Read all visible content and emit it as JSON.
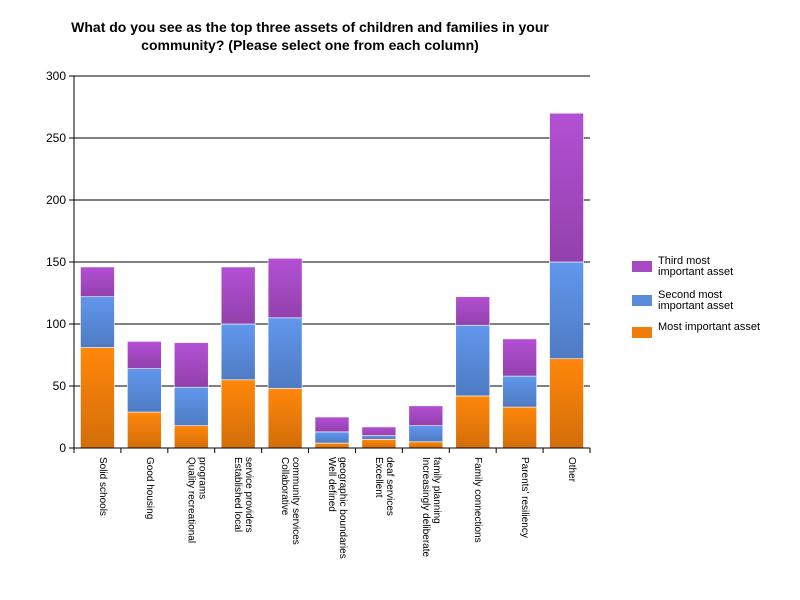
{
  "chart_data": {
    "type": "bar",
    "stacked": true,
    "title": "What do you see as the top three assets of children and families in your community? (Please select one from each column)",
    "categories": [
      "Solid schools",
      "Good housing",
      "Quality recreational programs",
      "Established local service providers",
      "Collaborative community services",
      "Well defined geographic boundaries",
      "Excellent deaf services",
      "Increasingly deliberate family planning",
      "Family connections",
      "Parents' resiliency",
      "Other"
    ],
    "category_lines": [
      [
        "Solid schools"
      ],
      [
        "Good housing"
      ],
      [
        "Quality recreational",
        "programs"
      ],
      [
        "Established local",
        "service providers"
      ],
      [
        "Collaborative",
        "community services"
      ],
      [
        "Well defined",
        "geographic boundaries"
      ],
      [
        "Excellent",
        "deaf services"
      ],
      [
        "Increasingly deliberate",
        "family planning"
      ],
      [
        "Family connections"
      ],
      [
        "Parents' resiliency"
      ],
      [
        "Other"
      ]
    ],
    "series": [
      {
        "name": "Most important asset",
        "color": "#f07d0a",
        "values": [
          81,
          29,
          18,
          55,
          48,
          4,
          7,
          5,
          42,
          33,
          72
        ]
      },
      {
        "name": "Second most important asset",
        "color": "#5a8cdc",
        "values": [
          41,
          35,
          31,
          45,
          57,
          9,
          3,
          13,
          57,
          25,
          78
        ]
      },
      {
        "name": "Third most important asset",
        "color": "#a64ac4",
        "values": [
          24,
          22,
          36,
          46,
          48,
          12,
          7,
          16,
          23,
          30,
          120
        ]
      }
    ],
    "ylim": [
      0,
      300
    ],
    "yticks": [
      0,
      50,
      100,
      150,
      200,
      250,
      300
    ],
    "grid": true,
    "legend_position": "right",
    "xlabel": "",
    "ylabel": ""
  },
  "legend": [
    {
      "lines": [
        "Third most",
        "important asset"
      ],
      "color": "#a64ac4"
    },
    {
      "lines": [
        "Second most",
        "important asset"
      ],
      "color": "#5a8cdc"
    },
    {
      "lines": [
        "Most important asset"
      ],
      "color": "#f07d0a"
    }
  ]
}
